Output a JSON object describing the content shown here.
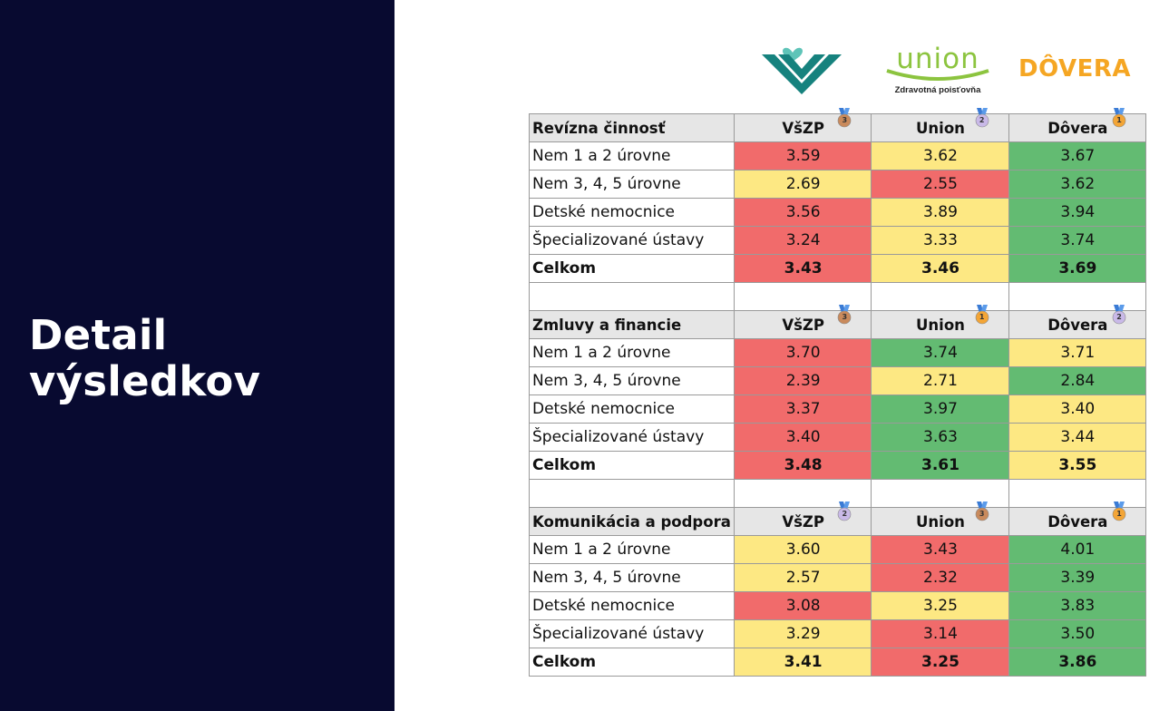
{
  "slide": {
    "title_line1": "Detail",
    "title_line2": "výsledkov"
  },
  "logos": {
    "union_word": "union",
    "union_subtitle": "Zdravotná poisťovňa",
    "dovera": "DÔVERA"
  },
  "colors": {
    "red": "#f16b6b",
    "yellow": "#fde883",
    "green": "#63bb72",
    "header": "#e6e6e6",
    "sidebar": "#080a30"
  },
  "sections": [
    {
      "title": "Revízna činnosť",
      "insurers": [
        {
          "name": "VšZP",
          "rank": "3"
        },
        {
          "name": "Union",
          "rank": "2"
        },
        {
          "name": "Dôvera",
          "rank": "1"
        }
      ],
      "rows": [
        {
          "label": "Nem 1 a 2 úrovne",
          "values": [
            "3.59",
            "3.62",
            "3.67"
          ],
          "colors": [
            "red",
            "yellow",
            "green"
          ]
        },
        {
          "label": "Nem 3, 4, 5 úrovne",
          "values": [
            "2.69",
            "2.55",
            "3.62"
          ],
          "colors": [
            "yellow",
            "red",
            "green"
          ]
        },
        {
          "label": "Detské nemocnice",
          "values": [
            "3.56",
            "3.89",
            "3.94"
          ],
          "colors": [
            "red",
            "yellow",
            "green"
          ]
        },
        {
          "label": "Špecializované ústavy",
          "values": [
            "3.24",
            "3.33",
            "3.74"
          ],
          "colors": [
            "red",
            "yellow",
            "green"
          ]
        },
        {
          "label": "Celkom",
          "values": [
            "3.43",
            "3.46",
            "3.69"
          ],
          "colors": [
            "red",
            "yellow",
            "green"
          ]
        }
      ]
    },
    {
      "title": "Zmluvy a financie",
      "insurers": [
        {
          "name": "VšZP",
          "rank": "3"
        },
        {
          "name": "Union",
          "rank": "1"
        },
        {
          "name": "Dôvera",
          "rank": "2"
        }
      ],
      "rows": [
        {
          "label": "Nem 1 a 2 úrovne",
          "values": [
            "3.70",
            "3.74",
            "3.71"
          ],
          "colors": [
            "red",
            "green",
            "yellow"
          ]
        },
        {
          "label": "Nem 3, 4, 5 úrovne",
          "values": [
            "2.39",
            "2.71",
            "2.84"
          ],
          "colors": [
            "red",
            "yellow",
            "green"
          ]
        },
        {
          "label": "Detské nemocnice",
          "values": [
            "3.37",
            "3.97",
            "3.40"
          ],
          "colors": [
            "red",
            "green",
            "yellow"
          ]
        },
        {
          "label": "Špecializované ústavy",
          "values": [
            "3.40",
            "3.63",
            "3.44"
          ],
          "colors": [
            "red",
            "green",
            "yellow"
          ]
        },
        {
          "label": "Celkom",
          "values": [
            "3.48",
            "3.61",
            "3.55"
          ],
          "colors": [
            "red",
            "green",
            "yellow"
          ]
        }
      ]
    },
    {
      "title": "Komunikácia a podpora",
      "insurers": [
        {
          "name": "VšZP",
          "rank": "2"
        },
        {
          "name": "Union",
          "rank": "3"
        },
        {
          "name": "Dôvera",
          "rank": "1"
        }
      ],
      "rows": [
        {
          "label": "Nem 1 a 2 úrovne",
          "values": [
            "3.60",
            "3.43",
            "4.01"
          ],
          "colors": [
            "yellow",
            "red",
            "green"
          ]
        },
        {
          "label": "Nem 3, 4, 5 úrovne",
          "values": [
            "2.57",
            "2.32",
            "3.39"
          ],
          "colors": [
            "yellow",
            "red",
            "green"
          ]
        },
        {
          "label": "Detské nemocnice",
          "values": [
            "3.08",
            "3.25",
            "3.83"
          ],
          "colors": [
            "red",
            "yellow",
            "green"
          ]
        },
        {
          "label": "Špecializované ústavy",
          "values": [
            "3.29",
            "3.14",
            "3.50"
          ],
          "colors": [
            "yellow",
            "red",
            "green"
          ]
        },
        {
          "label": "Celkom",
          "values": [
            "3.41",
            "3.25",
            "3.86"
          ],
          "colors": [
            "yellow",
            "red",
            "green"
          ]
        }
      ]
    }
  ]
}
